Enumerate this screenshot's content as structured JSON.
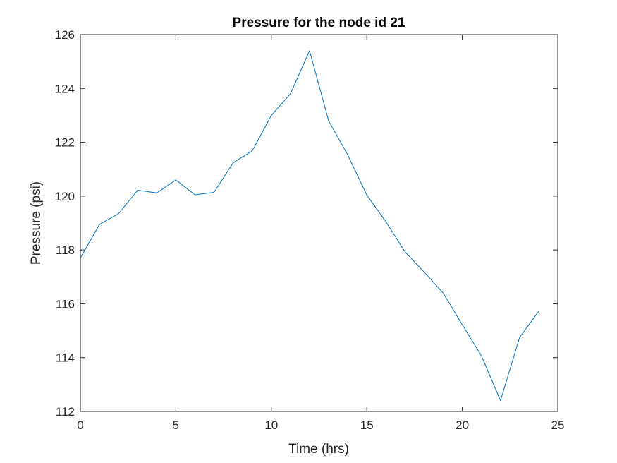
{
  "chart_data": {
    "type": "line",
    "title": "Pressure for the node id 21",
    "xlabel": "Time (hrs)",
    "ylabel": "Pressure (psi)",
    "xlim": [
      0,
      25
    ],
    "ylim": [
      112,
      126
    ],
    "xticks": [
      0,
      5,
      10,
      15,
      20,
      25
    ],
    "yticks": [
      112,
      114,
      116,
      118,
      120,
      122,
      124,
      126
    ],
    "grid": false,
    "box": true,
    "series": [
      {
        "color": "#0072BD",
        "x": [
          0,
          1,
          2,
          3,
          4,
          5,
          6,
          7,
          8,
          9,
          10,
          11,
          12,
          13,
          14,
          15,
          16,
          17,
          18,
          19,
          20,
          21,
          22,
          23,
          24
        ],
        "y": [
          117.7,
          118.95,
          119.35,
          120.22,
          120.12,
          120.6,
          120.05,
          120.14,
          121.24,
          121.68,
          123.0,
          123.8,
          125.4,
          122.8,
          121.53,
          120.04,
          119.05,
          117.93,
          117.18,
          116.4,
          115.22,
          114.07,
          112.4,
          114.75,
          115.72
        ]
      }
    ]
  }
}
